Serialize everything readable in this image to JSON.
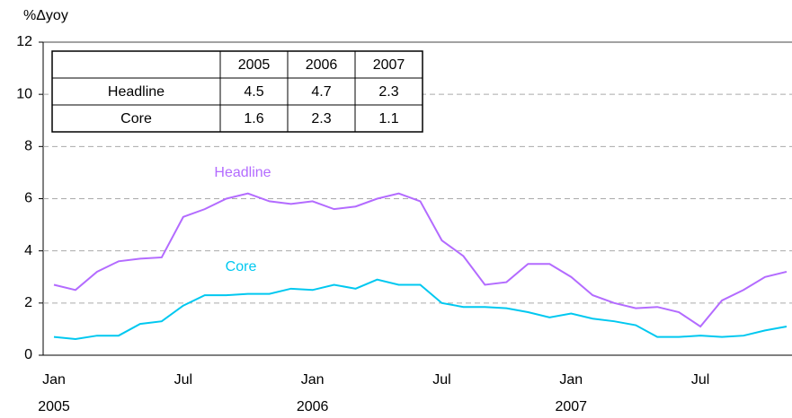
{
  "chart_data": {
    "type": "line",
    "y_axis_label": "%Δyoy",
    "categories": [
      "Jan",
      null,
      null,
      null,
      null,
      null,
      "Jul",
      null,
      null,
      null,
      null,
      null,
      "Jan",
      null,
      null,
      null,
      null,
      null,
      "Jul",
      null,
      null,
      null,
      null,
      null,
      "Jan",
      null,
      null,
      null,
      null,
      null,
      "Jul",
      null,
      null,
      null,
      null
    ],
    "category_years": [
      "2005",
      null,
      null,
      null,
      null,
      null,
      null,
      null,
      null,
      null,
      null,
      null,
      "2006",
      null,
      null,
      null,
      null,
      null,
      null,
      null,
      null,
      null,
      null,
      null,
      "2007",
      null,
      null,
      null,
      null,
      null,
      null,
      null,
      null,
      null,
      null
    ],
    "series": [
      {
        "name": "Headline",
        "color": "#b36bff",
        "values": [
          2.7,
          2.5,
          3.2,
          3.6,
          3.7,
          3.75,
          5.3,
          5.6,
          6.0,
          6.2,
          5.9,
          5.8,
          5.9,
          5.6,
          5.7,
          6.0,
          6.2,
          5.9,
          4.4,
          3.8,
          2.7,
          2.8,
          3.5,
          3.5,
          3.0,
          2.3,
          2.0,
          1.8,
          1.85,
          1.65,
          1.1,
          2.1,
          2.5,
          3.0,
          3.2
        ]
      },
      {
        "name": "Core",
        "color": "#00c8f0",
        "values": [
          0.7,
          0.62,
          0.75,
          0.75,
          1.2,
          1.3,
          1.9,
          2.3,
          2.3,
          2.35,
          2.35,
          2.55,
          2.5,
          2.7,
          2.55,
          2.9,
          2.7,
          2.7,
          2.0,
          1.85,
          1.85,
          1.8,
          1.65,
          1.45,
          1.6,
          1.4,
          1.3,
          1.15,
          0.7,
          0.7,
          0.75,
          0.7,
          0.75,
          0.95,
          1.1
        ]
      }
    ],
    "ylim": [
      0,
      12
    ],
    "yticks": [
      0,
      2,
      4,
      6,
      8,
      10,
      12
    ],
    "grid": true,
    "table": {
      "columns": [
        "2005",
        "2006",
        "2007"
      ],
      "rows": [
        {
          "label": "Headline",
          "values": [
            4.5,
            4.7,
            2.3
          ]
        },
        {
          "label": "Core",
          "values": [
            1.6,
            2.3,
            1.1
          ]
        }
      ]
    }
  }
}
